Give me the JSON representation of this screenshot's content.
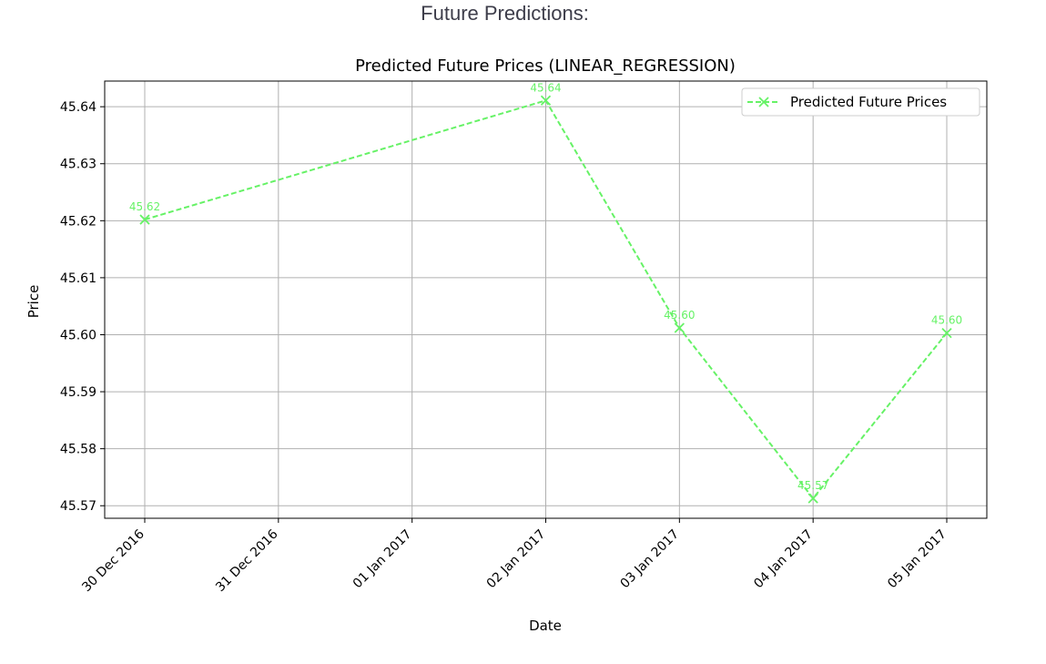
{
  "heading": "Future Predictions:",
  "colors": {
    "series": "#66f266",
    "grid": "#b0b0b0",
    "text": "#000000",
    "heading": "#3d3d4a"
  },
  "chart_data": {
    "type": "line",
    "title": "Predicted Future Prices (LINEAR_REGRESSION)",
    "xlabel": "Date",
    "ylabel": "Price",
    "x_tick_labels": [
      "30 Dec 2016",
      "31 Dec 2016",
      "01 Jan 2017",
      "02 Jan 2017",
      "03 Jan 2017",
      "04 Jan 2017",
      "05 Jan 2017"
    ],
    "y_ticks": [
      45.57,
      45.58,
      45.59,
      45.6,
      45.61,
      45.62,
      45.63,
      45.64
    ],
    "y_tick_labels": [
      "45.57",
      "45.58",
      "45.59",
      "45.60",
      "45.61",
      "45.62",
      "45.63",
      "45.64"
    ],
    "ylim": [
      45.5678,
      45.6445
    ],
    "xlim": [
      "2016-12-29",
      "2017-01-05"
    ],
    "grid": true,
    "legend_position": "top-right",
    "line_style": "dashed",
    "marker": "x",
    "series": [
      {
        "name": "Predicted Future Prices",
        "color": "#66f266",
        "x": [
          "2016-12-30",
          "2017-01-02",
          "2017-01-03",
          "2017-01-04",
          "2017-01-05"
        ],
        "values": [
          45.6202,
          45.6411,
          45.6012,
          45.5713,
          45.6003
        ],
        "data_labels": [
          "45.62",
          "45.64",
          "45.60",
          "45.57",
          "45.60"
        ]
      }
    ]
  }
}
